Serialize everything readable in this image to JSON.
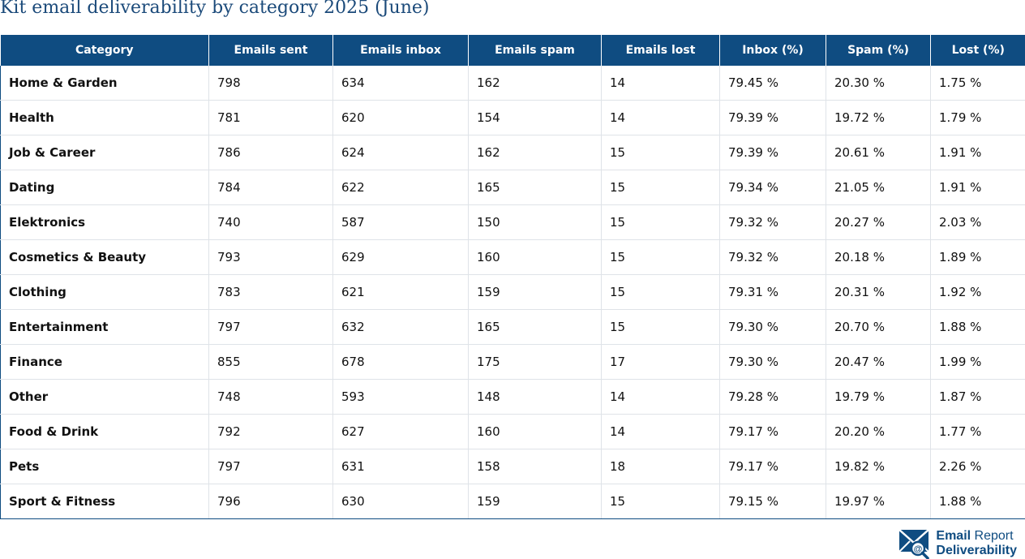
{
  "title": "Kit email deliverability by category 2025 (June)",
  "table": {
    "headers": [
      "Category",
      "Emails sent",
      "Emails inbox",
      "Emails spam",
      "Emails lost",
      "Inbox (%)",
      "Spam (%)",
      "Lost (%)"
    ],
    "rows": [
      [
        "Home & Garden",
        "798",
        "634",
        "162",
        "14",
        "79.45 %",
        "20.30 %",
        "1.75 %"
      ],
      [
        "Health",
        "781",
        "620",
        "154",
        "14",
        "79.39 %",
        "19.72 %",
        "1.79 %"
      ],
      [
        "Job & Career",
        "786",
        "624",
        "162",
        "15",
        "79.39 %",
        "20.61 %",
        "1.91 %"
      ],
      [
        "Dating",
        "784",
        "622",
        "165",
        "15",
        "79.34 %",
        "21.05 %",
        "1.91 %"
      ],
      [
        "Elektronics",
        "740",
        "587",
        "150",
        "15",
        "79.32 %",
        "20.27 %",
        "2.03 %"
      ],
      [
        "Cosmetics & Beauty",
        "793",
        "629",
        "160",
        "15",
        "79.32 %",
        "20.18 %",
        "1.89 %"
      ],
      [
        "Clothing",
        "783",
        "621",
        "159",
        "15",
        "79.31 %",
        "20.31 %",
        "1.92 %"
      ],
      [
        "Entertainment",
        "797",
        "632",
        "165",
        "15",
        "79.30 %",
        "20.70 %",
        "1.88 %"
      ],
      [
        "Finance",
        "855",
        "678",
        "175",
        "17",
        "79.30 %",
        "20.47 %",
        "1.99 %"
      ],
      [
        "Other",
        "748",
        "593",
        "148",
        "14",
        "79.28 %",
        "19.79 %",
        "1.87 %"
      ],
      [
        "Food & Drink",
        "792",
        "627",
        "160",
        "14",
        "79.17 %",
        "20.20 %",
        "1.77 %"
      ],
      [
        "Pets",
        "797",
        "631",
        "158",
        "18",
        "79.17 %",
        "19.82 %",
        "2.26 %"
      ],
      [
        "Sport & Fitness",
        "796",
        "630",
        "159",
        "15",
        "79.15 %",
        "19.97 %",
        "1.88 %"
      ]
    ]
  },
  "logo": {
    "word1": "Email",
    "word2": "Report",
    "word3": "Deliverability",
    "icon": "envelope-at-icon",
    "color": "#0f4c81"
  },
  "colors": {
    "header_bg": "#0f4c81",
    "title": "#1b4a7a"
  }
}
